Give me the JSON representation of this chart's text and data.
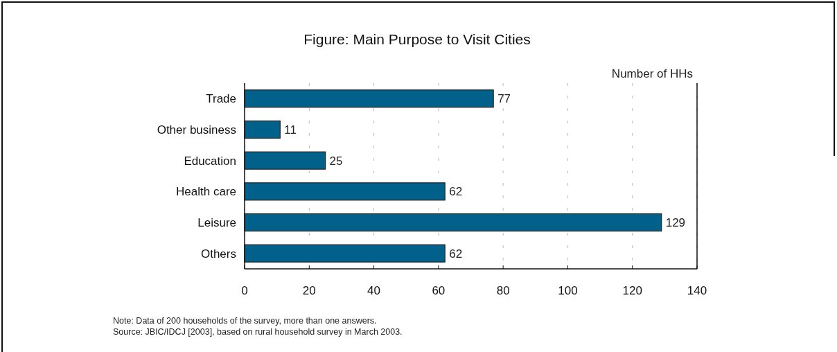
{
  "chart_data": {
    "type": "bar",
    "orientation": "horizontal",
    "title": "Figure: Main Purpose to Visit Cities",
    "xlabel": "Number of HHs",
    "categories": [
      "Trade",
      "Other business",
      "Education",
      "Health care",
      "Leisure",
      "Others"
    ],
    "values": [
      77,
      11,
      25,
      62,
      129,
      62
    ],
    "color": "#02618a",
    "xlim": [
      0,
      140
    ],
    "xticks": [
      0,
      20,
      40,
      60,
      80,
      100,
      120,
      140
    ],
    "grid": "x",
    "data_labels": true,
    "annotations": [
      "Note: Data of 200 households of the survey, more than one answers.",
      "Source: JBIC/IDCJ [2003], based on rural household survey in March 2003."
    ]
  }
}
